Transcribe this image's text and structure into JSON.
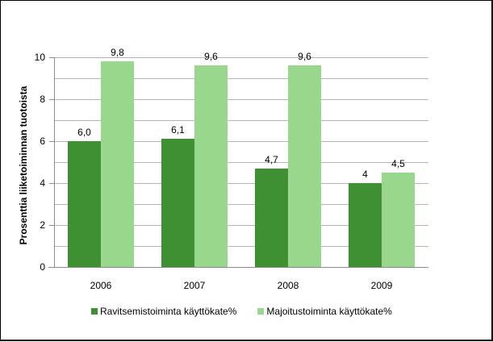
{
  "chart_data": {
    "type": "bar",
    "title": "",
    "xlabel": "",
    "ylabel": "Prosenttia liiketoiminnan tuotoista",
    "ylim": [
      0,
      10
    ],
    "yticks": [
      "0",
      "2",
      "4",
      "6",
      "8",
      "10"
    ],
    "grid": true,
    "legend_position": "bottom",
    "categories": [
      "2006",
      "2007",
      "2008",
      "2009"
    ],
    "series": [
      {
        "name": "Ravitsemistoiminta käyttökate%",
        "color": "#3F8F33",
        "values": [
          6.0,
          6.1,
          4.7,
          4.0
        ],
        "labels": [
          "6,0",
          "6,1",
          "4,7",
          "4"
        ]
      },
      {
        "name": "Majoitustoiminta käyttökate%",
        "color": "#98D78C",
        "values": [
          9.8,
          9.6,
          9.6,
          4.5
        ],
        "labels": [
          "9,8",
          "9,6",
          "9,6",
          "4,5"
        ]
      }
    ]
  }
}
